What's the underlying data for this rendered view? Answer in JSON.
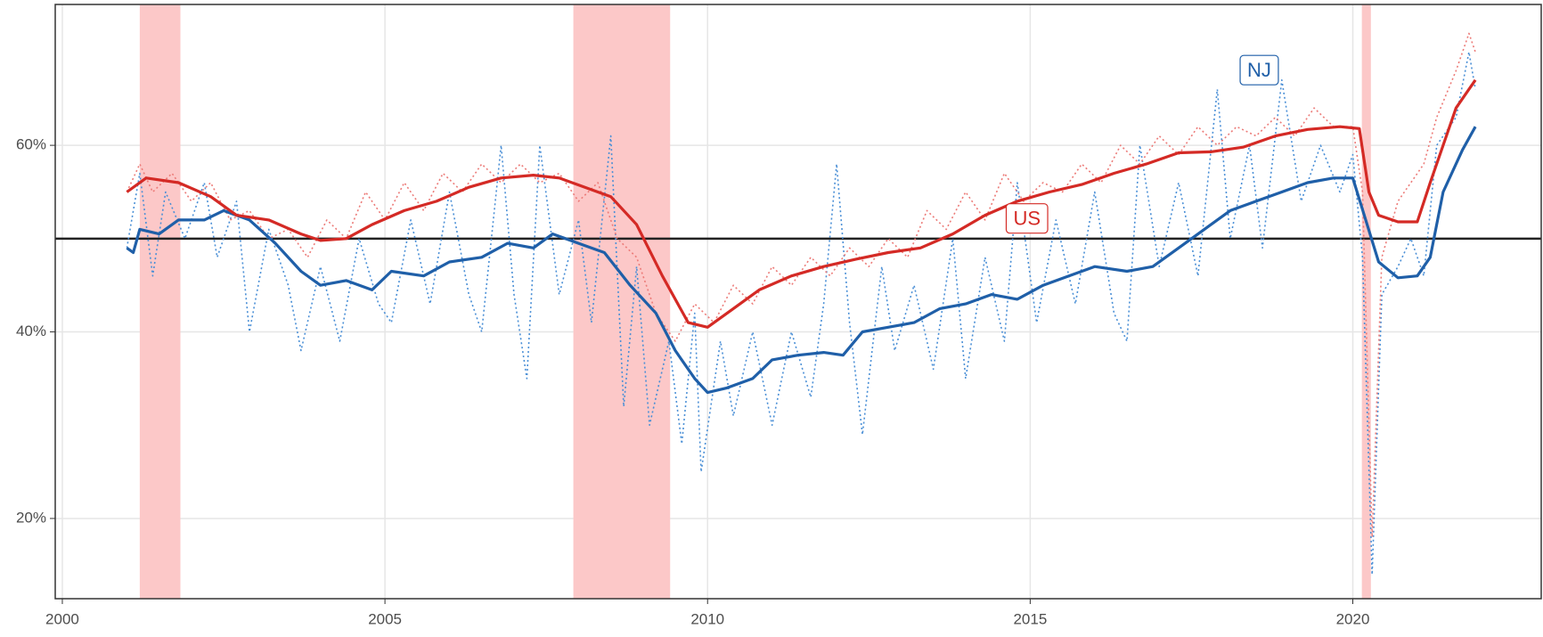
{
  "chart_data": {
    "type": "line",
    "xlim": [
      1999.89,
      2022.92
    ],
    "ylim": [
      11.4,
      75.1
    ],
    "xticks": [
      2000,
      2005,
      2010,
      2015,
      2020
    ],
    "yticks": [
      {
        "value": 20,
        "label": "20%"
      },
      {
        "value": 40,
        "label": "40%"
      },
      {
        "value": 60,
        "label": "60%"
      }
    ],
    "grid": true,
    "hline": 50,
    "recessions": [
      [
        2001.2,
        2001.83
      ],
      [
        2007.92,
        2009.42
      ],
      [
        2020.14,
        2020.28
      ]
    ],
    "recession_color": "#fcc8c8",
    "series": [
      {
        "name": "NJ",
        "color": "#1f5fa8",
        "style": "solid",
        "x": [
          2001.0,
          2001.1,
          2001.2,
          2001.5,
          2001.8,
          2002.2,
          2002.5,
          2002.9,
          2003.3,
          2003.7,
          2004.0,
          2004.4,
          2004.8,
          2005.1,
          2005.6,
          2006.0,
          2006.5,
          2006.9,
          2007.3,
          2007.6,
          2008.0,
          2008.4,
          2008.8,
          2009.2,
          2009.5,
          2009.8,
          2010.0,
          2010.3,
          2010.7,
          2011.0,
          2011.4,
          2011.8,
          2012.1,
          2012.4,
          2012.8,
          2013.2,
          2013.6,
          2014.0,
          2014.4,
          2014.8,
          2015.2,
          2015.6,
          2016.0,
          2016.5,
          2016.9,
          2017.3,
          2017.7,
          2018.1,
          2018.5,
          2018.9,
          2019.3,
          2019.7,
          2020.0,
          2020.2,
          2020.4,
          2020.7,
          2021.0,
          2021.2,
          2021.4,
          2021.7,
          2021.9
        ],
        "values": [
          49,
          48.5,
          51,
          50.5,
          52,
          52,
          53,
          52,
          49.5,
          46.5,
          45,
          45.5,
          44.5,
          46.5,
          46,
          47.5,
          48,
          49.5,
          49,
          50.5,
          49.5,
          48.5,
          45,
          42,
          38,
          35,
          33.5,
          34,
          35,
          37,
          37.5,
          37.8,
          37.5,
          40,
          40.5,
          41,
          42.5,
          43,
          44,
          43.5,
          45,
          46,
          47,
          46.5,
          47,
          49,
          51,
          53,
          54,
          55,
          56,
          56.5,
          56.5,
          52,
          47.5,
          45.8,
          46,
          48,
          55,
          59.5,
          62
        ]
      },
      {
        "name": "US",
        "color": "#d42a25",
        "style": "solid",
        "x": [
          2001.0,
          2001.3,
          2001.8,
          2002.3,
          2002.7,
          2003.2,
          2003.7,
          2004.0,
          2004.4,
          2004.8,
          2005.3,
          2005.8,
          2006.3,
          2006.8,
          2007.3,
          2007.7,
          2008.1,
          2008.5,
          2008.9,
          2009.3,
          2009.7,
          2010.0,
          2010.4,
          2010.8,
          2011.3,
          2011.8,
          2012.3,
          2012.8,
          2013.3,
          2013.8,
          2014.3,
          2014.8,
          2015.3,
          2015.8,
          2016.3,
          2016.8,
          2017.3,
          2017.8,
          2018.3,
          2018.8,
          2019.3,
          2019.8,
          2020.1,
          2020.25,
          2020.4,
          2020.7,
          2021.0,
          2021.2,
          2021.4,
          2021.6,
          2021.9
        ],
        "values": [
          55,
          56.5,
          56,
          54.5,
          52.5,
          52,
          50.5,
          49.8,
          50,
          51.5,
          53,
          54,
          55.5,
          56.5,
          56.8,
          56.5,
          55.5,
          54.5,
          51.5,
          46,
          41,
          40.5,
          42.5,
          44.5,
          46,
          47,
          47.8,
          48.5,
          49,
          50.5,
          52.5,
          54,
          55,
          55.8,
          57,
          58,
          59.2,
          59.3,
          59.8,
          61,
          61.7,
          62,
          61.8,
          55,
          52.5,
          51.8,
          51.8,
          56,
          60,
          64,
          67
        ]
      },
      {
        "color": "#4a8fd6",
        "style": "dotted",
        "x": [
          2001.0,
          2001.2,
          2001.4,
          2001.6,
          2001.9,
          2002.2,
          2002.4,
          2002.7,
          2002.9,
          2003.2,
          2003.5,
          2003.7,
          2004.0,
          2004.3,
          2004.6,
          2004.9,
          2005.1,
          2005.4,
          2005.7,
          2006.0,
          2006.3,
          2006.5,
          2006.8,
          2007.0,
          2007.2,
          2007.4,
          2007.7,
          2008.0,
          2008.2,
          2008.5,
          2008.7,
          2008.9,
          2009.1,
          2009.4,
          2009.6,
          2009.8,
          2009.9,
          2010.2,
          2010.4,
          2010.7,
          2011.0,
          2011.3,
          2011.6,
          2011.8,
          2012.0,
          2012.2,
          2012.4,
          2012.7,
          2012.9,
          2013.2,
          2013.5,
          2013.8,
          2014.0,
          2014.3,
          2014.6,
          2014.8,
          2015.1,
          2015.4,
          2015.7,
          2016.0,
          2016.3,
          2016.5,
          2016.7,
          2017.0,
          2017.3,
          2017.6,
          2017.9,
          2018.1,
          2018.4,
          2018.6,
          2018.9,
          2019.2,
          2019.5,
          2019.8,
          2020.0,
          2020.15,
          2020.3,
          2020.45,
          2020.7,
          2020.9,
          2021.1,
          2021.3,
          2021.6,
          2021.8,
          2021.9
        ],
        "values": [
          49,
          57,
          46,
          55,
          50,
          56,
          48,
          54,
          40,
          51,
          45,
          38,
          47,
          39,
          50,
          43,
          41,
          52,
          43,
          55,
          44,
          40,
          60,
          44,
          35,
          60,
          44,
          52,
          41,
          61,
          32,
          47,
          30,
          39,
          28,
          42,
          25,
          39,
          31,
          40,
          30,
          40,
          33,
          43,
          58,
          41,
          29,
          47,
          38,
          45,
          36,
          50,
          35,
          48,
          39,
          56,
          41,
          52,
          43,
          55,
          42,
          39,
          60,
          47,
          56,
          46,
          66,
          50,
          60,
          49,
          67,
          54,
          60,
          55,
          59,
          48,
          14,
          44,
          47,
          50,
          46,
          60,
          63,
          70,
          66
        ]
      },
      {
        "color": "#ec7b78",
        "style": "dotted",
        "x": [
          2001.0,
          2001.2,
          2001.4,
          2001.7,
          2002.0,
          2002.3,
          2002.6,
          2002.9,
          2003.2,
          2003.5,
          2003.8,
          2004.1,
          2004.4,
          2004.7,
          2005.0,
          2005.3,
          2005.6,
          2005.9,
          2006.2,
          2006.5,
          2006.8,
          2007.1,
          2007.4,
          2007.7,
          2008.0,
          2008.3,
          2008.6,
          2008.9,
          2009.2,
          2009.5,
          2009.8,
          2010.1,
          2010.4,
          2010.7,
          2011.0,
          2011.3,
          2011.6,
          2011.9,
          2012.2,
          2012.5,
          2012.8,
          2013.1,
          2013.4,
          2013.7,
          2014.0,
          2014.3,
          2014.6,
          2014.9,
          2015.2,
          2015.5,
          2015.8,
          2016.1,
          2016.4,
          2016.7,
          2017.0,
          2017.3,
          2017.6,
          2017.9,
          2018.2,
          2018.5,
          2018.8,
          2019.1,
          2019.4,
          2019.7,
          2020.0,
          2020.15,
          2020.3,
          2020.45,
          2020.7,
          2020.9,
          2021.1,
          2021.3,
          2021.6,
          2021.8,
          2021.9
        ],
        "values": [
          55,
          58,
          55,
          57,
          54,
          56,
          52,
          53,
          50,
          51,
          48,
          52,
          50,
          55,
          52,
          56,
          53,
          57,
          55,
          58,
          56,
          58,
          56,
          57,
          54,
          56,
          50,
          48,
          42,
          39,
          43,
          41,
          45,
          43,
          47,
          45,
          48,
          46,
          49,
          47,
          50,
          48,
          53,
          51,
          55,
          52,
          57,
          54,
          56,
          55,
          58,
          56,
          60,
          58,
          61,
          59,
          62,
          60,
          62,
          61,
          63,
          61,
          64,
          62,
          62,
          55,
          18,
          48,
          54,
          56,
          58,
          63,
          68,
          72,
          70
        ]
      }
    ]
  }
}
